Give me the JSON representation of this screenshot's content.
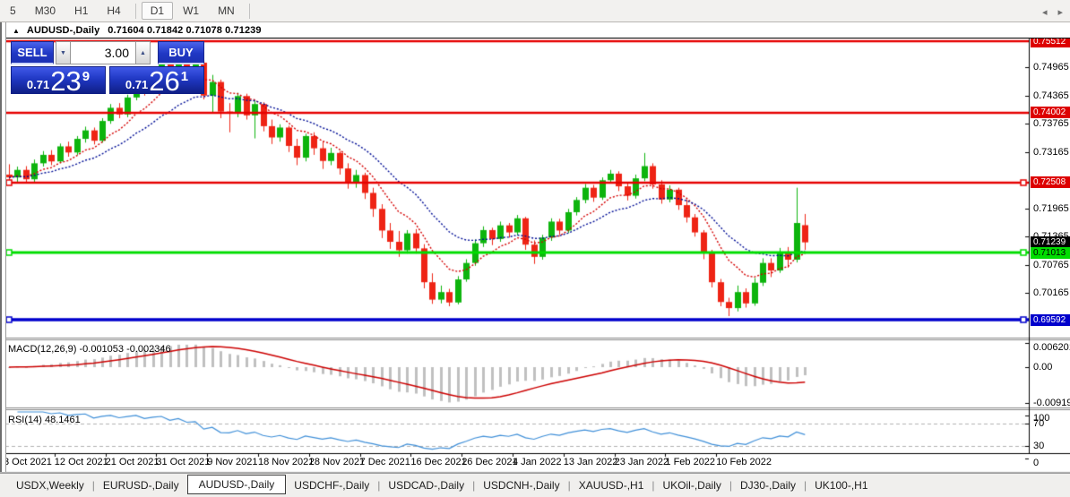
{
  "toolbar": {
    "timeframes": [
      "5",
      "M30",
      "H1",
      "H4",
      "D1",
      "W1",
      "MN"
    ],
    "active_timeframe": "D1"
  },
  "chart": {
    "title_symbol": "AUDUSD-,Daily",
    "title_ohlc": "0.71604 0.71842 0.71078 0.71239",
    "collapse_marker": "▲"
  },
  "trade_panel": {
    "sell_label": "SELL",
    "buy_label": "BUY",
    "volume": "3.00",
    "sell_price_prefix": "0.71",
    "sell_price_big": "23",
    "sell_price_sup": "9",
    "buy_price_prefix": "0.71",
    "buy_price_big": "26",
    "buy_price_sup": "1"
  },
  "indicators": {
    "macd_label": "MACD(12,26,9)",
    "macd_values": "-0.001053 -0.002346",
    "rsi_label": "RSI(14)",
    "rsi_value": "48.1461"
  },
  "price_axis": {
    "main_ticks": [
      0.74965,
      0.74365,
      0.73765,
      0.73165,
      0.71965,
      0.71365,
      0.70765,
      0.70165
    ],
    "macd_ticks": [
      {
        "text": "0.006201",
        "value": 0.006201
      },
      {
        "text": "0.00",
        "value": 0.0
      },
      {
        "text": "-0.009197",
        "value": -0.009197
      }
    ],
    "rsi_ticks": [
      {
        "text": "100",
        "value": 100
      },
      {
        "text": "70",
        "value": 70
      },
      {
        "text": "30",
        "value": 30
      },
      {
        "text": "0",
        "value": 0
      }
    ],
    "badges": [
      {
        "text": "0.75512",
        "price": 0.75512,
        "bg": "#dd0000",
        "fg": "#ffffff"
      },
      {
        "text": "0.74002",
        "price": 0.74002,
        "bg": "#dd0000",
        "fg": "#ffffff"
      },
      {
        "text": "0.72508",
        "price": 0.72508,
        "bg": "#dd0000",
        "fg": "#ffffff"
      },
      {
        "text": "0.71239",
        "price": 0.71239,
        "bg": "#000000",
        "fg": "#ffffff"
      },
      {
        "text": "0.71013",
        "price": 0.71013,
        "bg": "#00dd00",
        "fg": "#000000"
      },
      {
        "text": "0.69592",
        "price": 0.69592,
        "bg": "#0000cc",
        "fg": "#ffffff"
      }
    ]
  },
  "tabs": {
    "items": [
      "USDX,Weekly",
      "EURUSD-,Daily",
      "AUDUSD-,Daily",
      "USDCHF-,Daily",
      "USDCAD-,Daily",
      "USDCNH-,Daily",
      "XAUUSD-,H1",
      "UKOil-,Daily",
      "DJ30-,Daily",
      "UK100-,H1"
    ],
    "active": "AUDUSD-,Daily",
    "scroll_left": "◂",
    "scroll_right": "▸"
  },
  "chart_data": {
    "type": "candlestick",
    "symbol": "AUDUSD-",
    "timeframe": "Daily",
    "current_bar": {
      "open": 0.71604,
      "high": 0.71842,
      "low": 0.71078,
      "close": 0.71239
    },
    "date_labels": [
      "3 Oct 2021",
      "12 Oct 2021",
      "21 Oct 2021",
      "31 Oct 2021",
      "9 Nov 2021",
      "18 Nov 2021",
      "28 Nov 2021",
      "7 Dec 2021",
      "16 Dec 2021",
      "26 Dec 2021",
      "4 Jan 2022",
      "13 Jan 2022",
      "23 Jan 2022",
      "1 Feb 2022",
      "10 Feb 2022"
    ],
    "hlines": [
      {
        "price": 0.75512,
        "color": "#e60000",
        "width": 2.5,
        "handles": false
      },
      {
        "price": 0.74002,
        "color": "#e60000",
        "width": 2.5,
        "handles": false
      },
      {
        "price": 0.72508,
        "color": "#e60000",
        "width": 2.5,
        "handles": true
      },
      {
        "price": 0.71013,
        "color": "#00dd00",
        "width": 3,
        "handles": true
      },
      {
        "price": 0.69592,
        "color": "#0000cc",
        "width": 3.5,
        "handles": true
      }
    ],
    "ma_fast_color": "#d40000",
    "ma_slow_color": "#000f96",
    "up_color": "#0db40d",
    "down_color": "#ee2415",
    "macd": {
      "hist_color": "#c0c0c0",
      "signal_color": "#cc0000",
      "range": [
        -0.009197,
        0.006201
      ]
    },
    "rsi": {
      "line_color": "#3f8fd8",
      "levels": [
        70,
        30
      ],
      "range": [
        0,
        100
      ]
    },
    "candles": [
      [
        0.7268,
        0.729,
        0.7248,
        0.7262
      ],
      [
        0.7262,
        0.7285,
        0.7252,
        0.7278
      ],
      [
        0.7278,
        0.7286,
        0.725,
        0.7258
      ],
      [
        0.7258,
        0.73,
        0.7252,
        0.7292
      ],
      [
        0.7292,
        0.7318,
        0.7285,
        0.731
      ],
      [
        0.731,
        0.732,
        0.7288,
        0.7296
      ],
      [
        0.7296,
        0.7334,
        0.7292,
        0.7328
      ],
      [
        0.7328,
        0.7338,
        0.7306,
        0.7315
      ],
      [
        0.7315,
        0.735,
        0.731,
        0.7344
      ],
      [
        0.7344,
        0.737,
        0.7336,
        0.7362
      ],
      [
        0.7362,
        0.7368,
        0.7332,
        0.734
      ],
      [
        0.734,
        0.7388,
        0.7336,
        0.7382
      ],
      [
        0.7382,
        0.7418,
        0.7376,
        0.741
      ],
      [
        0.741,
        0.742,
        0.7388,
        0.7396
      ],
      [
        0.7396,
        0.7438,
        0.739,
        0.7432
      ],
      [
        0.7432,
        0.7472,
        0.7426,
        0.7465
      ],
      [
        0.7465,
        0.7475,
        0.7436,
        0.7445
      ],
      [
        0.7445,
        0.7488,
        0.744,
        0.748
      ],
      [
        0.748,
        0.7515,
        0.7474,
        0.7505
      ],
      [
        0.7505,
        0.7512,
        0.7466,
        0.7477
      ],
      [
        0.7477,
        0.7535,
        0.747,
        0.7524
      ],
      [
        0.7524,
        0.753,
        0.7486,
        0.7494
      ],
      [
        0.7494,
        0.7512,
        0.7477,
        0.7506
      ],
      [
        0.7506,
        0.751,
        0.7428,
        0.7436
      ],
      [
        0.7436,
        0.748,
        0.7398,
        0.7465
      ],
      [
        0.7465,
        0.747,
        0.7388,
        0.7402
      ],
      [
        0.7402,
        0.742,
        0.7358,
        0.7398
      ],
      [
        0.7398,
        0.7442,
        0.739,
        0.7435
      ],
      [
        0.7435,
        0.744,
        0.7385,
        0.7394
      ],
      [
        0.7394,
        0.7425,
        0.7345,
        0.7418
      ],
      [
        0.7418,
        0.7422,
        0.736,
        0.7371
      ],
      [
        0.7371,
        0.7385,
        0.7333,
        0.7347
      ],
      [
        0.7347,
        0.7375,
        0.7338,
        0.7368
      ],
      [
        0.7368,
        0.7372,
        0.7316,
        0.7329
      ],
      [
        0.7329,
        0.7344,
        0.7288,
        0.7304
      ],
      [
        0.7304,
        0.7355,
        0.7296,
        0.735
      ],
      [
        0.735,
        0.7358,
        0.731,
        0.7324
      ],
      [
        0.7324,
        0.7338,
        0.728,
        0.7297
      ],
      [
        0.7297,
        0.7325,
        0.7288,
        0.7314
      ],
      [
        0.7314,
        0.7318,
        0.7268,
        0.7281
      ],
      [
        0.7281,
        0.7292,
        0.7238,
        0.7251
      ],
      [
        0.7251,
        0.7278,
        0.724,
        0.7267
      ],
      [
        0.7267,
        0.7272,
        0.7216,
        0.7229
      ],
      [
        0.7229,
        0.724,
        0.7178,
        0.7195
      ],
      [
        0.7195,
        0.7205,
        0.7133,
        0.7149
      ],
      [
        0.7149,
        0.7165,
        0.711,
        0.7125
      ],
      [
        0.7125,
        0.7148,
        0.7093,
        0.7107
      ],
      [
        0.7107,
        0.715,
        0.71,
        0.7143
      ],
      [
        0.7143,
        0.7152,
        0.71,
        0.7111
      ],
      [
        0.7111,
        0.712,
        0.7026,
        0.7039
      ],
      [
        0.7039,
        0.7058,
        0.6993,
        0.7002
      ],
      [
        0.7002,
        0.7032,
        0.6994,
        0.7018
      ],
      [
        0.7018,
        0.7025,
        0.6988,
        0.6996
      ],
      [
        0.6996,
        0.7052,
        0.6992,
        0.7045
      ],
      [
        0.7045,
        0.7088,
        0.704,
        0.708
      ],
      [
        0.708,
        0.713,
        0.7074,
        0.7122
      ],
      [
        0.7122,
        0.7158,
        0.7114,
        0.715
      ],
      [
        0.715,
        0.7155,
        0.7118,
        0.7131
      ],
      [
        0.7131,
        0.7168,
        0.7125,
        0.716
      ],
      [
        0.716,
        0.7165,
        0.7134,
        0.7145
      ],
      [
        0.7145,
        0.7182,
        0.7139,
        0.7175
      ],
      [
        0.7175,
        0.7178,
        0.7108,
        0.7119
      ],
      [
        0.7119,
        0.7128,
        0.7078,
        0.7093
      ],
      [
        0.7093,
        0.714,
        0.7087,
        0.7134
      ],
      [
        0.7134,
        0.7175,
        0.7127,
        0.7168
      ],
      [
        0.7168,
        0.7174,
        0.714,
        0.7149
      ],
      [
        0.7149,
        0.7195,
        0.7144,
        0.7188
      ],
      [
        0.7188,
        0.722,
        0.7181,
        0.7214
      ],
      [
        0.7214,
        0.7248,
        0.7207,
        0.724
      ],
      [
        0.724,
        0.7246,
        0.721,
        0.7219
      ],
      [
        0.7219,
        0.7262,
        0.7214,
        0.7256
      ],
      [
        0.7256,
        0.7278,
        0.7249,
        0.727
      ],
      [
        0.727,
        0.7275,
        0.7233,
        0.7243
      ],
      [
        0.7243,
        0.7252,
        0.7213,
        0.7223
      ],
      [
        0.7223,
        0.7268,
        0.7217,
        0.726
      ],
      [
        0.726,
        0.7314,
        0.7254,
        0.7286
      ],
      [
        0.7286,
        0.7292,
        0.7238,
        0.7247
      ],
      [
        0.7247,
        0.7256,
        0.7206,
        0.7215
      ],
      [
        0.7215,
        0.7245,
        0.7209,
        0.7236
      ],
      [
        0.7236,
        0.724,
        0.7193,
        0.7203
      ],
      [
        0.7203,
        0.7215,
        0.7166,
        0.7177
      ],
      [
        0.7177,
        0.7184,
        0.7136,
        0.7145
      ],
      [
        0.7145,
        0.715,
        0.7088,
        0.7101
      ],
      [
        0.7101,
        0.7108,
        0.7028,
        0.7039
      ],
      [
        0.7039,
        0.7046,
        0.6988,
        0.6997
      ],
      [
        0.6997,
        0.7006,
        0.6967,
        0.6984
      ],
      [
        0.6984,
        0.7032,
        0.6977,
        0.7018
      ],
      [
        0.7018,
        0.7026,
        0.6985,
        0.6994
      ],
      [
        0.6994,
        0.7048,
        0.6989,
        0.7038
      ],
      [
        0.7038,
        0.709,
        0.7031,
        0.708
      ],
      [
        0.708,
        0.709,
        0.705,
        0.7064
      ],
      [
        0.7064,
        0.7112,
        0.7059,
        0.7102
      ],
      [
        0.7102,
        0.7114,
        0.707,
        0.7087
      ],
      [
        0.7087,
        0.724,
        0.7081,
        0.7165
      ],
      [
        0.71604,
        0.71842,
        0.71078,
        0.71239
      ]
    ]
  }
}
